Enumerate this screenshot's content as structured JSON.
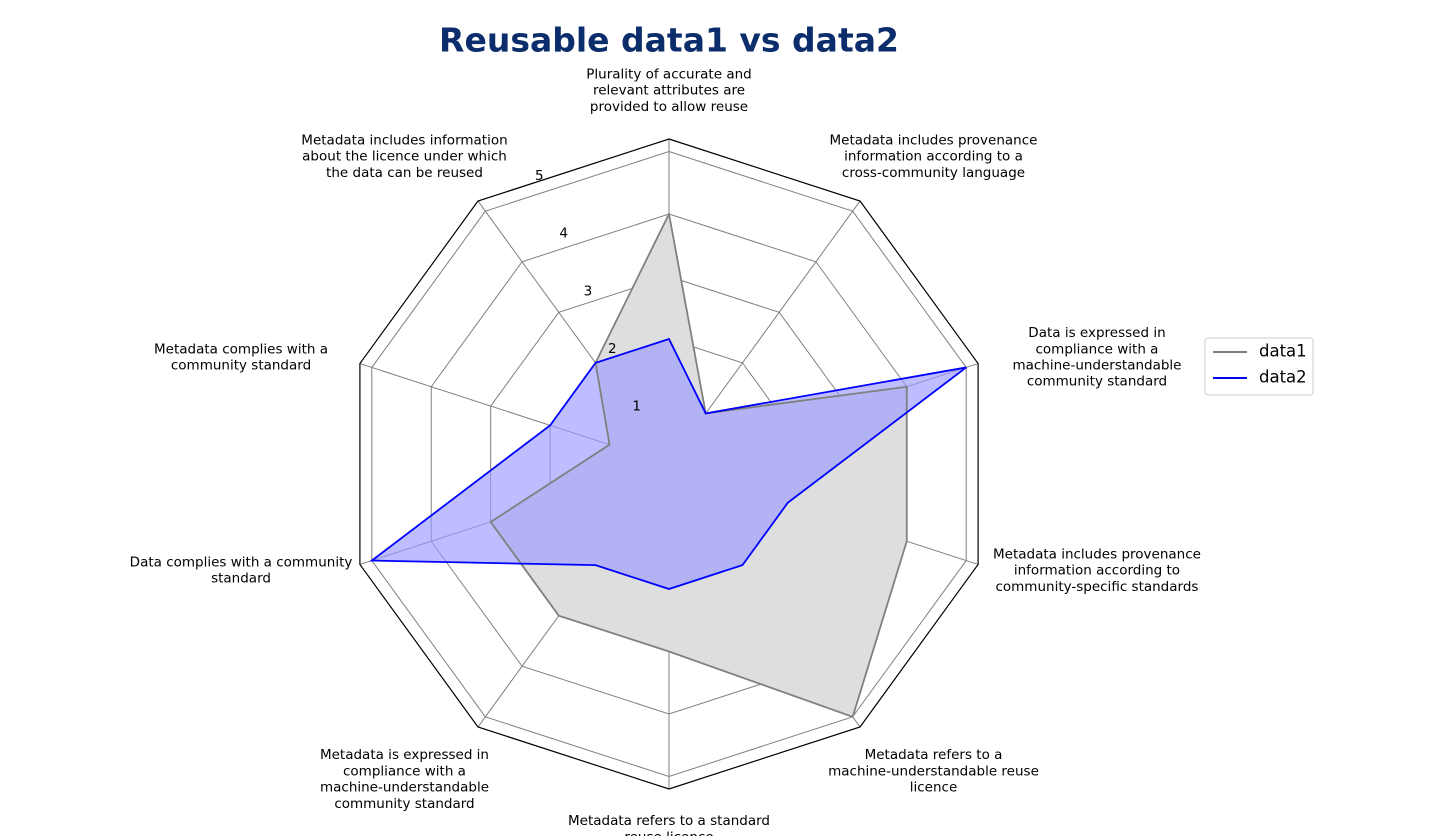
{
  "chart_data": {
    "type": "radar",
    "title": "Reusable data1 vs data2",
    "categories": [
      "Plurality of accurate and relevant attributes are provided to allow reuse",
      "Metadata includes provenance information according to a cross-community language",
      "Data is expressed in compliance with a machine-understandable community standard",
      "Metadata includes provenance information according to community-specific standards",
      "Metadata refers to a machine-understandable reuse licence",
      "Metadata refers to a standard reuse licence",
      "Metadata is expressed in compliance with a machine-understandable community standard",
      "Data complies with a community standard",
      "Metadata complies with a community standard",
      "Metadata includes information about the licence under which the data can be reused"
    ],
    "category_lines": [
      [
        "Plurality of accurate and",
        "relevant attributes are",
        "provided to allow reuse"
      ],
      [
        "Metadata includes provenance",
        "information according to a",
        "cross-community language"
      ],
      [
        "Data is expressed in",
        "compliance with a",
        "machine-understandable",
        "community standard"
      ],
      [
        "Metadata includes provenance",
        "information according to",
        "community-specific standards"
      ],
      [
        "Metadata refers to a",
        "machine-understandable reuse",
        "licence"
      ],
      [
        "Metadata refers to a standard",
        "reuse licence"
      ],
      [
        "Metadata is expressed in",
        "compliance with a",
        "machine-understandable",
        "community standard"
      ],
      [
        "Data complies with a community",
        "standard"
      ],
      [
        "Metadata complies with a",
        "community standard"
      ],
      [
        "Metadata includes information",
        "about the licence under which",
        "the data can be reused"
      ]
    ],
    "series": [
      {
        "name": "data1",
        "values": [
          4,
          1,
          4,
          4,
          5,
          3,
          3,
          3,
          1,
          2
        ],
        "color": "#808080",
        "fill": "#dedede"
      },
      {
        "name": "data2",
        "values": [
          2,
          1,
          5,
          2,
          2,
          2,
          2,
          5,
          2,
          2
        ],
        "color": "#0000ff",
        "fill": "#9999ff"
      }
    ],
    "rlim": [
      0,
      5.2
    ],
    "rticks": [
      1,
      2,
      3,
      4,
      5
    ],
    "grid": true,
    "legend_position": "right"
  },
  "colors": {
    "title": "#0b2d6b",
    "grid": "#808080",
    "frame": "#000000"
  }
}
